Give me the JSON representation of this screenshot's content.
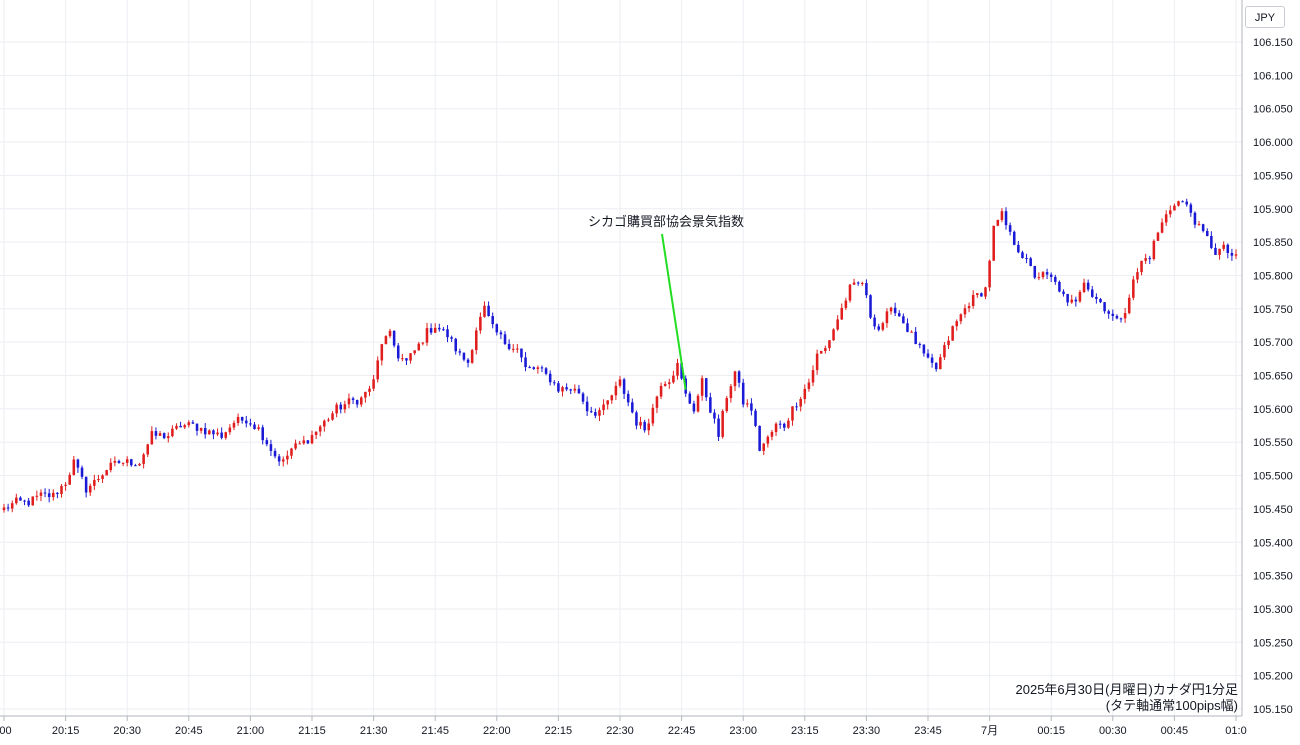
{
  "chart_data": {
    "type": "candlestick",
    "currency_label": "JPY",
    "caption_line1": "2025年6月30日(月曜日)カナダ円1分足",
    "caption_line2": "(タテ軸通常100pips幅)",
    "annotation": "シカゴ購買部協会景気指数",
    "annotation_time_index": 166,
    "ylim": [
      105.14,
      106.2
    ],
    "yticks": [
      "106.150",
      "106.100",
      "106.050",
      "106.000",
      "105.950",
      "105.900",
      "105.850",
      "105.800",
      "105.750",
      "105.700",
      "105.650",
      "105.600",
      "105.550",
      "105.500",
      "105.450",
      "105.400",
      "105.350",
      "105.300",
      "105.250",
      "105.200",
      "105.150"
    ],
    "xticks": [
      {
        "i": 0,
        "label": ":00"
      },
      {
        "i": 15,
        "label": "20:15"
      },
      {
        "i": 30,
        "label": "20:30"
      },
      {
        "i": 45,
        "label": "20:45"
      },
      {
        "i": 60,
        "label": "21:00"
      },
      {
        "i": 75,
        "label": "21:15"
      },
      {
        "i": 90,
        "label": "21:30"
      },
      {
        "i": 105,
        "label": "21:45"
      },
      {
        "i": 120,
        "label": "22:00"
      },
      {
        "i": 135,
        "label": "22:15"
      },
      {
        "i": 150,
        "label": "22:30"
      },
      {
        "i": 165,
        "label": "22:45"
      },
      {
        "i": 180,
        "label": "23:00"
      },
      {
        "i": 195,
        "label": "23:15"
      },
      {
        "i": 210,
        "label": "23:30"
      },
      {
        "i": 225,
        "label": "23:45"
      },
      {
        "i": 240,
        "label": "7月"
      },
      {
        "i": 255,
        "label": "00:15"
      },
      {
        "i": 270,
        "label": "00:30"
      },
      {
        "i": 285,
        "label": "00:45"
      },
      {
        "i": 300,
        "label": "01:0"
      }
    ],
    "x_count": 301,
    "up_color": "#e01e1e",
    "down_color": "#1a1ad6",
    "annotation_line_color": "#22dd22",
    "anchors": [
      [
        0,
        105.45
      ],
      [
        3,
        105.46
      ],
      [
        6,
        105.46
      ],
      [
        9,
        105.47
      ],
      [
        12,
        105.47
      ],
      [
        15,
        105.49
      ],
      [
        17,
        105.52
      ],
      [
        20,
        105.48
      ],
      [
        22,
        105.49
      ],
      [
        25,
        105.51
      ],
      [
        28,
        105.52
      ],
      [
        30,
        105.52
      ],
      [
        33,
        105.52
      ],
      [
        36,
        105.56
      ],
      [
        40,
        105.56
      ],
      [
        43,
        105.575
      ],
      [
        46,
        105.575
      ],
      [
        50,
        105.565
      ],
      [
        53,
        105.56
      ],
      [
        56,
        105.58
      ],
      [
        59,
        105.585
      ],
      [
        62,
        105.57
      ],
      [
        64,
        105.55
      ],
      [
        66,
        105.53
      ],
      [
        68,
        105.52
      ],
      [
        70,
        105.54
      ],
      [
        73,
        105.55
      ],
      [
        75,
        105.56
      ],
      [
        78,
        105.58
      ],
      [
        81,
        105.6
      ],
      [
        84,
        105.61
      ],
      [
        87,
        105.615
      ],
      [
        90,
        105.64
      ],
      [
        92,
        105.7
      ],
      [
        94,
        105.71
      ],
      [
        96,
        105.68
      ],
      [
        98,
        105.67
      ],
      [
        101,
        105.695
      ],
      [
        103,
        105.715
      ],
      [
        105,
        105.725
      ],
      [
        108,
        105.71
      ],
      [
        111,
        105.68
      ],
      [
        113,
        105.67
      ],
      [
        115,
        105.72
      ],
      [
        117,
        105.75
      ],
      [
        119,
        105.72
      ],
      [
        122,
        105.7
      ],
      [
        125,
        105.69
      ],
      [
        127,
        105.66
      ],
      [
        130,
        105.66
      ],
      [
        133,
        105.645
      ],
      [
        135,
        105.63
      ],
      [
        138,
        105.63
      ],
      [
        140,
        105.625
      ],
      [
        142,
        105.6
      ],
      [
        144,
        105.595
      ],
      [
        146,
        105.6
      ],
      [
        148,
        105.62
      ],
      [
        150,
        105.64
      ],
      [
        152,
        105.61
      ],
      [
        154,
        105.58
      ],
      [
        156,
        105.57
      ],
      [
        158,
        105.6
      ],
      [
        160,
        105.64
      ],
      [
        162,
        105.645
      ],
      [
        164,
        105.665
      ],
      [
        166,
        105.62
      ],
      [
        168,
        105.6
      ],
      [
        170,
        105.64
      ],
      [
        172,
        105.6
      ],
      [
        174,
        105.56
      ],
      [
        176,
        105.62
      ],
      [
        178,
        105.655
      ],
      [
        180,
        105.61
      ],
      [
        182,
        105.6
      ],
      [
        184,
        105.54
      ],
      [
        186,
        105.555
      ],
      [
        188,
        105.575
      ],
      [
        190,
        105.575
      ],
      [
        192,
        105.6
      ],
      [
        194,
        105.62
      ],
      [
        196,
        105.64
      ],
      [
        198,
        105.68
      ],
      [
        200,
        105.69
      ],
      [
        202,
        105.72
      ],
      [
        204,
        105.75
      ],
      [
        206,
        105.78
      ],
      [
        209,
        105.79
      ],
      [
        211,
        105.74
      ],
      [
        213,
        105.72
      ],
      [
        215,
        105.74
      ],
      [
        217,
        105.75
      ],
      [
        219,
        105.73
      ],
      [
        221,
        105.71
      ],
      [
        223,
        105.69
      ],
      [
        225,
        105.67
      ],
      [
        227,
        105.66
      ],
      [
        229,
        105.69
      ],
      [
        231,
        105.72
      ],
      [
        233,
        105.74
      ],
      [
        235,
        105.76
      ],
      [
        237,
        105.77
      ],
      [
        239,
        105.78
      ],
      [
        241,
        105.87
      ],
      [
        243,
        105.89
      ],
      [
        245,
        105.86
      ],
      [
        247,
        105.84
      ],
      [
        249,
        105.82
      ],
      [
        251,
        105.8
      ],
      [
        253,
        105.8
      ],
      [
        255,
        105.795
      ],
      [
        257,
        105.78
      ],
      [
        259,
        105.755
      ],
      [
        261,
        105.765
      ],
      [
        263,
        105.795
      ],
      [
        265,
        105.77
      ],
      [
        267,
        105.76
      ],
      [
        269,
        105.745
      ],
      [
        271,
        105.73
      ],
      [
        273,
        105.75
      ],
      [
        275,
        105.79
      ],
      [
        277,
        105.82
      ],
      [
        279,
        105.83
      ],
      [
        281,
        105.865
      ],
      [
        283,
        105.89
      ],
      [
        285,
        105.91
      ],
      [
        287,
        105.91
      ],
      [
        289,
        105.895
      ],
      [
        291,
        105.87
      ],
      [
        293,
        105.855
      ],
      [
        295,
        105.835
      ],
      [
        297,
        105.84
      ],
      [
        299,
        105.83
      ],
      [
        301,
        105.82
      ]
    ]
  }
}
